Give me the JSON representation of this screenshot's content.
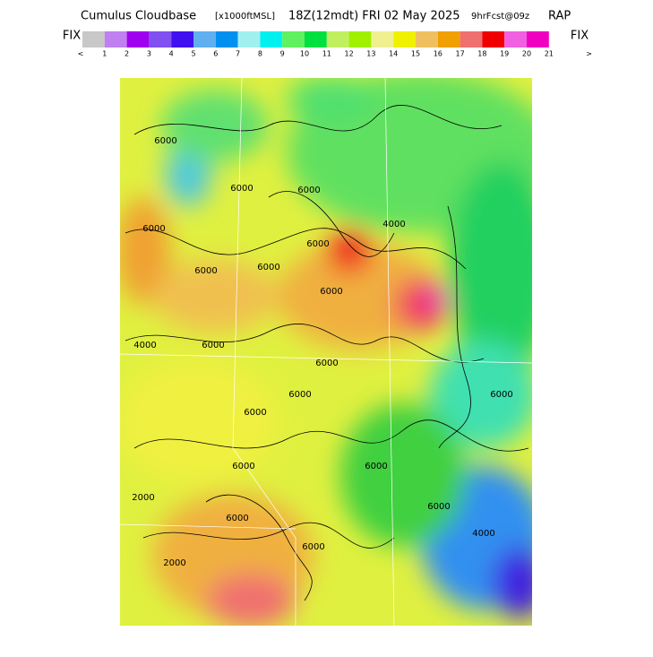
{
  "header": {
    "title": "Cumulus Cloudbase",
    "units": "[x1000ftMSL]",
    "valid": "18Z(12mdt) FRI 02 May 2025",
    "forecast": "9hrFcst@09z",
    "model": "RAP"
  },
  "colorbar": {
    "left_label": "FIX",
    "right_label": "FIX",
    "colors": [
      "#c8c8c8",
      "#c080f0",
      "#a000f0",
      "#8050f0",
      "#4010f0",
      "#60b0f0",
      "#0090f0",
      "#a0f0f0",
      "#00f0f0",
      "#60f060",
      "#00e040",
      "#c0f060",
      "#a0f000",
      "#f0f090",
      "#f0f000",
      "#f0c060",
      "#f0a000",
      "#f07070",
      "#f00000",
      "#f060e0",
      "#f000c0"
    ],
    "labels": [
      "<",
      "1",
      "2",
      "3",
      "4",
      "5",
      "6",
      "7",
      "8",
      "9",
      "10",
      "11",
      "12",
      "13",
      "14",
      "15",
      "16",
      "17",
      "18",
      "19",
      "20",
      "21",
      ">"
    ]
  },
  "map": {
    "contour_labels": [
      "6000",
      "6000",
      "6000",
      "6000",
      "6000",
      "6000",
      "4000",
      "6000",
      "6000",
      "6000",
      "6000",
      "6000",
      "6000",
      "4000",
      "2000",
      "6000",
      "6000",
      "6000",
      "6000",
      "4000",
      "2000",
      "6000",
      "6000"
    ]
  }
}
